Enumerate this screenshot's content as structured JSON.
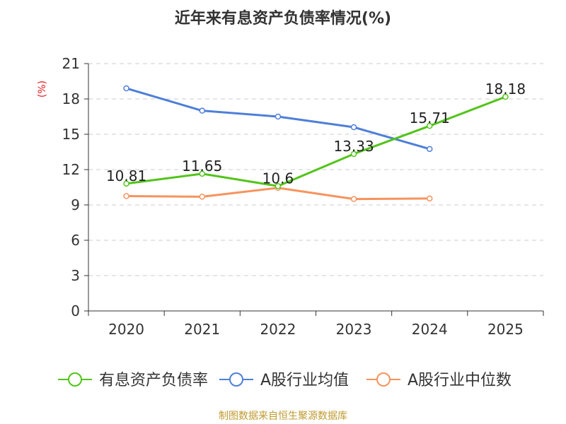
{
  "chart_data": {
    "type": "line",
    "title": "近年来有息资产负债率情况(%)",
    "ylabel": "(%)",
    "xlabel": "",
    "categories": [
      "2020",
      "2021",
      "2022",
      "2023",
      "2024",
      "2025"
    ],
    "ylim": [
      0,
      21
    ],
    "yticks": [
      "0",
      "3",
      "6",
      "9",
      "12",
      "15",
      "18",
      "21"
    ],
    "grid": true,
    "legend_position": "bottom",
    "series": [
      {
        "name": "有息资产负债率",
        "color": "#52c41a",
        "values": [
          10.81,
          11.65,
          10.6,
          13.33,
          15.71,
          18.18
        ],
        "labels": [
          "10.81",
          "11.65",
          "10.6",
          "13.33",
          "15.71",
          "18.18"
        ]
      },
      {
        "name": "A股行业均值",
        "color": "#4e7fd8",
        "values": [
          18.9,
          17.0,
          16.5,
          15.6,
          13.75,
          null
        ]
      },
      {
        "name": "A股行业中位数",
        "color": "#f6935d",
        "values": [
          9.75,
          9.7,
          10.45,
          9.5,
          9.55,
          null
        ]
      }
    ]
  },
  "source": "制图数据来自恒生聚源数据库"
}
